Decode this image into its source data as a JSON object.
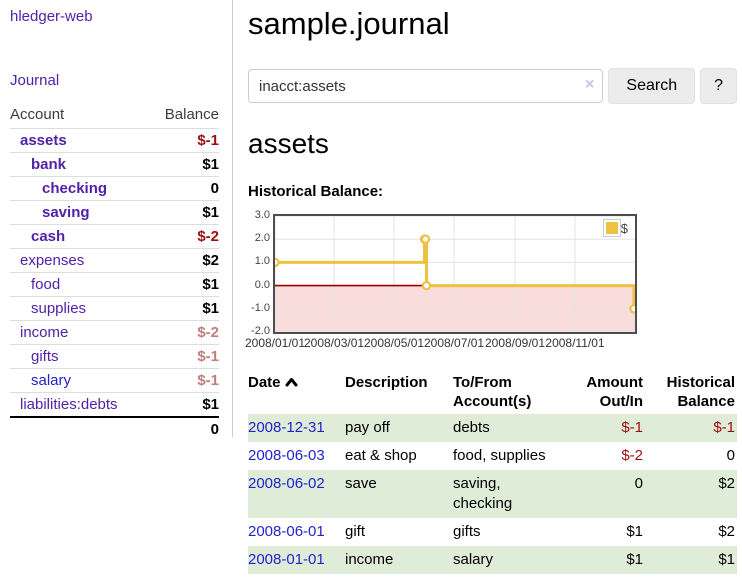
{
  "sidebar": {
    "brand": "hledger-web",
    "nav": {
      "journal": "Journal"
    },
    "accounts_table": {
      "headers": {
        "account": "Account",
        "balance": "Balance"
      },
      "rows": [
        {
          "name": "assets",
          "depth": 0,
          "bold": true,
          "balance": "$-1",
          "balance_style": "neg-strong"
        },
        {
          "name": "bank",
          "depth": 1,
          "bold": true,
          "balance": "$1",
          "balance_style": "pos"
        },
        {
          "name": "checking",
          "depth": 2,
          "bold": true,
          "balance": "0",
          "balance_style": "pos"
        },
        {
          "name": "saving",
          "depth": 2,
          "bold": true,
          "balance": "$1",
          "balance_style": "pos"
        },
        {
          "name": "cash",
          "depth": 1,
          "bold": true,
          "balance": "$-2",
          "balance_style": "neg-strong"
        },
        {
          "name": "expenses",
          "depth": 0,
          "bold": false,
          "balance": "$2",
          "balance_style": "pos"
        },
        {
          "name": "food",
          "depth": 1,
          "bold": false,
          "balance": "$1",
          "balance_style": "pos"
        },
        {
          "name": "supplies",
          "depth": 1,
          "bold": false,
          "balance": "$1",
          "balance_style": "pos"
        },
        {
          "name": "income",
          "depth": 0,
          "bold": false,
          "balance": "$-2",
          "balance_style": "neg-soft"
        },
        {
          "name": "gifts",
          "depth": 1,
          "bold": false,
          "balance": "$-1",
          "balance_style": "neg-soft"
        },
        {
          "name": "salary",
          "depth": 1,
          "bold": false,
          "link_color": "blue",
          "balance": "$-1",
          "balance_style": "neg-soft"
        },
        {
          "name": "liabilities:debts",
          "depth": 0,
          "bold": false,
          "balance": "$1",
          "balance_style": "pos"
        }
      ],
      "total": "0"
    }
  },
  "header": {
    "title": "sample.journal"
  },
  "search": {
    "value": "inacct:assets",
    "clear_icon": "×",
    "button": "Search",
    "help_button": "?"
  },
  "account_page": {
    "title": "assets",
    "chart_label": "Historical Balance:"
  },
  "chart_data": {
    "type": "line",
    "title": "Historical Balance",
    "series": [
      {
        "name": "$",
        "color": "#edc240",
        "step": true,
        "points": [
          {
            "x": "2008-01-01",
            "y": 1
          },
          {
            "x": "2008-06-01",
            "y": 2
          },
          {
            "x": "2008-06-02",
            "y": 2
          },
          {
            "x": "2008-06-03",
            "y": 0
          },
          {
            "x": "2008-12-31",
            "y": -1
          }
        ]
      }
    ],
    "xlim": [
      "2008-01-01",
      "2009-01-01"
    ],
    "ylim": [
      -2,
      3
    ],
    "x_ticks": [
      {
        "label": "2008/01/01",
        "x": "2008-01-01"
      },
      {
        "label": "2008/03/01",
        "x": "2008-03-01"
      },
      {
        "label": "2008/05/01",
        "x": "2008-05-01"
      },
      {
        "label": "2008/07/01",
        "x": "2008-07-01"
      },
      {
        "label": "2008/09/01",
        "x": "2008-09-01"
      },
      {
        "label": "2008/11/01",
        "x": "2008-11-01"
      }
    ],
    "y_ticks": [
      {
        "label": "3.0",
        "y": 3
      },
      {
        "label": "2.0",
        "y": 2
      },
      {
        "label": "1.0",
        "y": 1
      },
      {
        "label": "0.0",
        "y": 0
      },
      {
        "label": "-1.0",
        "y": -1
      },
      {
        "label": "-2.0",
        "y": -2
      }
    ],
    "grid": true,
    "legend": {
      "label": "$",
      "position": "top-right"
    }
  },
  "register_table": {
    "headers": {
      "date": "Date",
      "description": "Description",
      "accounts": "To/From Account(s)",
      "amount": "Amount Out/In",
      "balance": "Historical Balance"
    },
    "rows": [
      {
        "date": "2008-12-31",
        "description": "pay off",
        "accounts": "debts",
        "amount": "$-1",
        "amount_negative": true,
        "balance": "$-1",
        "balance_negative": true
      },
      {
        "date": "2008-06-03",
        "description": "eat & shop",
        "accounts": "food, supplies",
        "amount": "$-2",
        "amount_negative": true,
        "balance": "0",
        "balance_negative": false
      },
      {
        "date": "2008-06-02",
        "description": "save",
        "accounts": "saving,\nchecking",
        "amount": "0",
        "amount_negative": false,
        "balance": "$2",
        "balance_negative": false
      },
      {
        "date": "2008-06-01",
        "description": "gift",
        "accounts": "gifts",
        "amount": "$1",
        "amount_negative": false,
        "balance": "$2",
        "balance_negative": false
      },
      {
        "date": "2008-01-01",
        "description": "income",
        "accounts": "salary",
        "amount": "$1",
        "amount_negative": false,
        "balance": "$1",
        "balance_negative": false
      }
    ]
  },
  "colors": {
    "link_purple": "#5221a8",
    "link_blue": "#2323cc",
    "negative_strong": "#9e0e0e",
    "negative_soft": "#c27d7d",
    "row_green": "#dfecd8",
    "series_yellow": "#edc240",
    "zero_line": "#990000",
    "negative_region": "#f9dcdc",
    "gridline": "#e3e3e3"
  }
}
